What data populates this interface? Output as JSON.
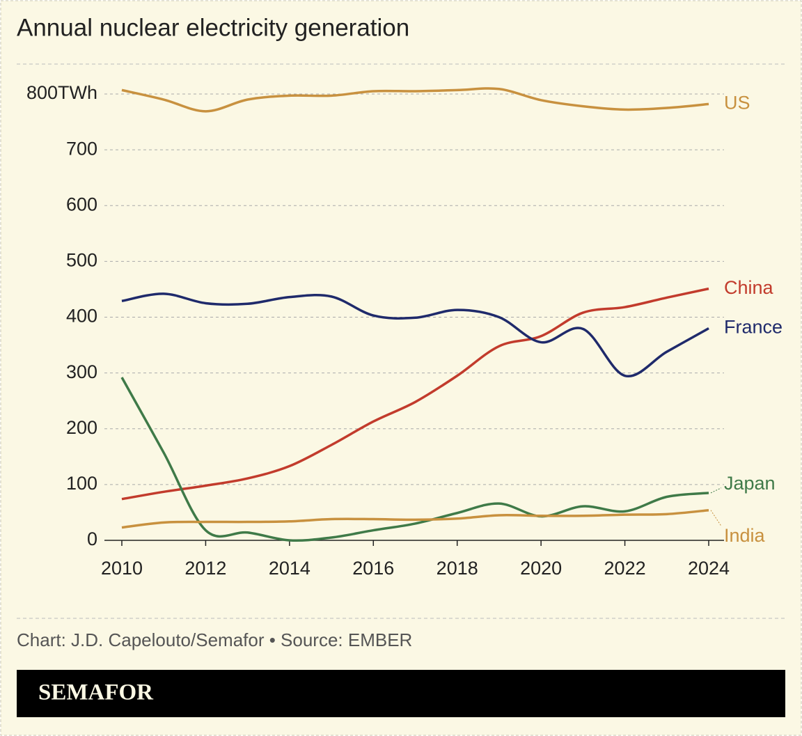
{
  "chart_data": {
    "type": "line",
    "title": "Annual nuclear electricity generation",
    "x": [
      2010,
      2011,
      2012,
      2013,
      2014,
      2015,
      2016,
      2017,
      2018,
      2019,
      2020,
      2021,
      2022,
      2023,
      2024
    ],
    "xlim": [
      2010,
      2024
    ],
    "xticks": [
      2010,
      2012,
      2014,
      2016,
      2018,
      2020,
      2022,
      2024
    ],
    "ylim": [
      0,
      800
    ],
    "yticks": [
      0,
      100,
      200,
      300,
      400,
      500,
      600,
      700,
      {
        "value": 800,
        "label": "800TWh"
      }
    ],
    "grid": true,
    "series": [
      {
        "name": "US",
        "color": "#c8913f",
        "values": [
          807,
          790,
          769,
          790,
          797,
          797,
          805,
          805,
          807,
          809,
          789,
          778,
          772,
          775,
          782
        ]
      },
      {
        "name": "China",
        "color": "#c23b2c",
        "values": [
          74,
          87,
          98,
          111,
          133,
          171,
          213,
          248,
          295,
          348,
          366,
          408,
          418,
          435,
          451
        ]
      },
      {
        "name": "France",
        "color": "#1f2a6b",
        "values": [
          429,
          442,
          425,
          424,
          436,
          437,
          403,
          399,
          413,
          400,
          355,
          379,
          295,
          338,
          380
        ]
      },
      {
        "name": "Japan",
        "color": "#3f7a48",
        "values": [
          292,
          157,
          18,
          14,
          0,
          5,
          18,
          30,
          49,
          66,
          43,
          61,
          52,
          78,
          85
        ]
      },
      {
        "name": "India",
        "color": "#c8913f",
        "values": [
          23,
          32,
          33,
          33,
          34,
          38,
          38,
          37,
          39,
          45,
          44,
          44,
          46,
          47,
          54
        ]
      }
    ]
  },
  "footer": {
    "credit": "Chart: J.D. Capelouto/Semafor • Source: EMBER",
    "brand": "SEMAFOR"
  }
}
